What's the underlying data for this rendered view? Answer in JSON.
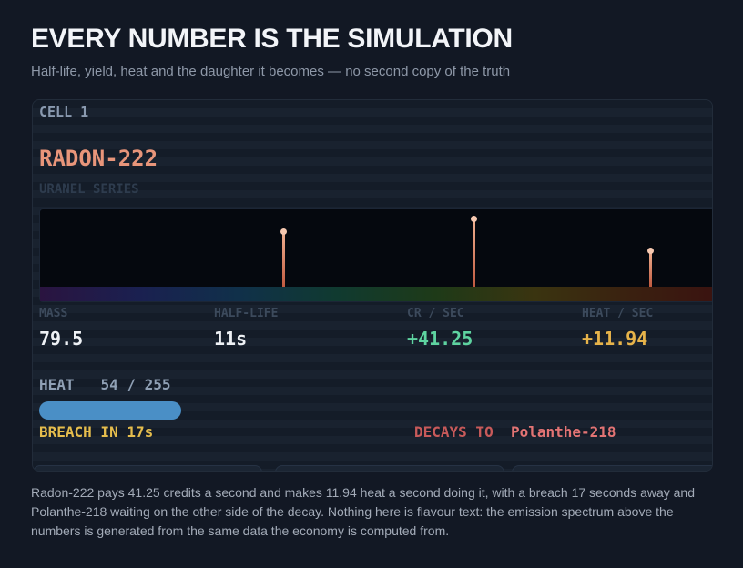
{
  "header": {
    "title": "EVERY NUMBER IS THE SIMULATION",
    "subtitle": "Half-life, yield, heat and the daughter it becomes — no second copy of the truth"
  },
  "card": {
    "cell": "CELL 1",
    "isotope": "RADON-222",
    "series": "URANEL SERIES",
    "stats": [
      {
        "label": "MASS",
        "value": "79.5"
      },
      {
        "label": "HALF-LIFE",
        "value": "11s"
      },
      {
        "label": "CR / SEC",
        "value": "+41.25"
      },
      {
        "label": "HEAT / SEC",
        "value": "+11.94"
      }
    ],
    "heat": {
      "label": "HEAT",
      "value": 54,
      "separator": "/",
      "max": 255
    },
    "breach": "BREACH IN 17s",
    "decays_label": "DECAYS TO",
    "daughter": "Polanthe-218"
  },
  "description": "Radon-222 pays 41.25 credits a second and makes 11.94 heat a second doing it, with a breach 17 seconds away and Polanthe-218 waiting on the other side of the decay. Nothing here is flavour text: the emission spectrum above the numbers is generated from the same data the economy is computed from."
}
